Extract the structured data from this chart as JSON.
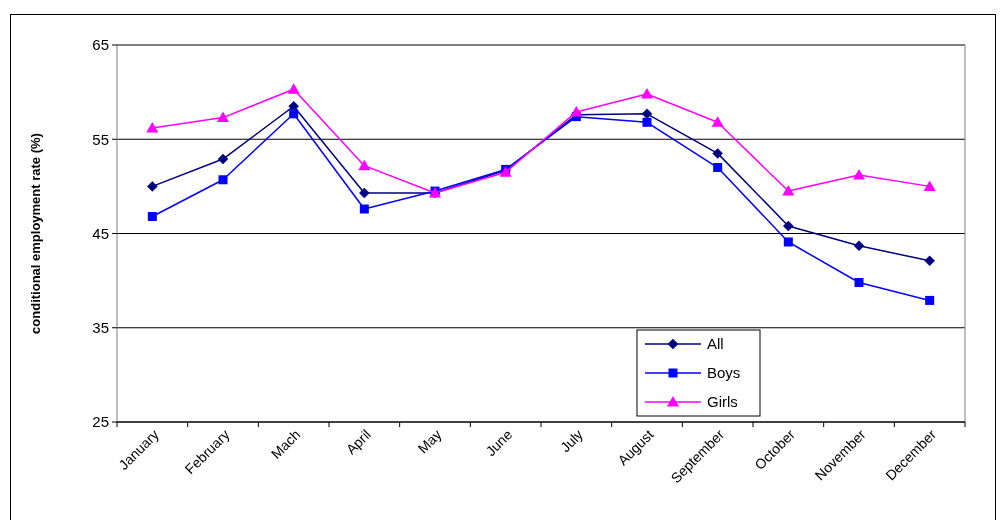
{
  "chart_data": {
    "type": "line",
    "ylabel": "conditional employment rate (%)",
    "categories": [
      "January",
      "February",
      "Mach",
      "April",
      "May",
      "June",
      "July",
      "August",
      "September",
      "October",
      "November",
      "December"
    ],
    "series": [
      {
        "name": "All",
        "color": "#000080",
        "marker": "diamond",
        "values": [
          50.0,
          52.9,
          58.5,
          49.3,
          49.3,
          51.7,
          57.6,
          57.7,
          53.5,
          45.8,
          43.7,
          42.1
        ]
      },
      {
        "name": "Boys",
        "color": "#0000ff",
        "marker": "square",
        "values": [
          46.8,
          50.7,
          57.7,
          47.6,
          49.5,
          51.8,
          57.4,
          56.8,
          52.0,
          44.1,
          39.8,
          37.9
        ]
      },
      {
        "name": "Girls",
        "color": "#ff00ff",
        "marker": "triangle",
        "values": [
          56.2,
          57.3,
          60.3,
          52.2,
          49.3,
          51.5,
          57.9,
          59.8,
          56.8,
          49.5,
          51.2,
          50.0
        ]
      }
    ],
    "ylim": [
      25,
      65
    ],
    "yticks": [
      25,
      35,
      45,
      55,
      65
    ],
    "grid": "y",
    "legend": "bottom"
  }
}
